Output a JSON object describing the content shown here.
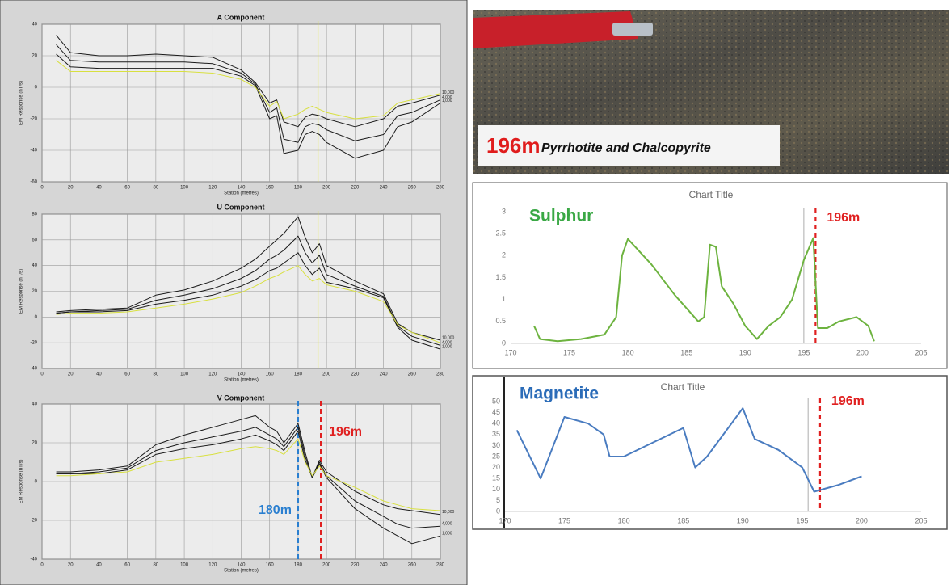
{
  "photo": {
    "depth": "196m",
    "caption": "Pyrrhotite and Chalcopyrite"
  },
  "chart_data": [
    {
      "type": "line",
      "title": "A Component",
      "xlabel": "Station (metres)",
      "ylabel": "EM Response (nT/s)",
      "grid": true,
      "x": [
        10,
        20,
        40,
        60,
        80,
        100,
        120,
        140,
        150,
        160,
        165,
        170,
        180,
        185,
        190,
        195,
        200,
        220,
        240,
        250,
        260,
        280
      ],
      "xlim": [
        0,
        280
      ],
      "xticks": [
        0,
        20,
        40,
        60,
        80,
        100,
        120,
        140,
        160,
        180,
        200,
        220,
        240,
        260,
        280
      ],
      "ylim": [
        -60,
        40
      ],
      "yticks": [
        -60,
        -40,
        -20,
        0,
        20,
        40
      ],
      "series": [
        {
          "name": "10,000",
          "color": "#1a1a1a",
          "values": [
            33,
            22,
            20,
            20,
            21,
            20,
            19,
            11,
            3,
            -10,
            -8,
            -22,
            -25,
            -19,
            -17,
            -18,
            -20,
            -25,
            -20,
            -12,
            -10,
            -5
          ]
        },
        {
          "name": "4,000",
          "color": "#1a1a1a",
          "values": [
            27,
            17,
            16,
            16,
            16,
            16,
            15,
            9,
            2,
            -16,
            -13,
            -33,
            -35,
            -25,
            -23,
            -24,
            -27,
            -34,
            -30,
            -18,
            -16,
            -8
          ]
        },
        {
          "name": "1,000",
          "color": "#1a1a1a",
          "values": [
            21,
            13,
            12,
            12,
            12,
            12,
            12,
            7,
            1,
            -20,
            -18,
            -42,
            -40,
            -30,
            -28,
            -30,
            -35,
            -45,
            -40,
            -25,
            -22,
            -10
          ]
        },
        {
          "color": "#d8e040",
          "values": [
            17,
            10,
            10,
            10,
            10,
            10,
            9,
            5,
            0,
            -12,
            -9,
            -20,
            -17,
            -14,
            -12,
            -14,
            -16,
            -20,
            -18,
            -10,
            -8,
            -4
          ]
        }
      ],
      "markers": [
        {
          "x": 194,
          "color": "#e6e83c",
          "dashed": false
        }
      ]
    },
    {
      "type": "line",
      "title": "U Component",
      "xlabel": "Station (metres)",
      "ylabel": "EM Response (nT/s)",
      "grid": true,
      "x": [
        10,
        20,
        40,
        60,
        80,
        100,
        120,
        140,
        150,
        160,
        165,
        170,
        180,
        185,
        190,
        195,
        200,
        220,
        240,
        250,
        260,
        280
      ],
      "xlim": [
        0,
        280
      ],
      "xticks": [
        0,
        20,
        40,
        60,
        80,
        100,
        120,
        140,
        160,
        180,
        200,
        220,
        240,
        260,
        280
      ],
      "ylim": [
        -40,
        80
      ],
      "yticks": [
        -40,
        -20,
        0,
        20,
        40,
        60,
        80
      ],
      "series": [
        {
          "name": "10,000",
          "color": "#1a1a1a",
          "values": [
            4,
            5,
            6,
            7,
            17,
            21,
            28,
            38,
            45,
            55,
            60,
            65,
            78,
            62,
            50,
            57,
            40,
            28,
            18,
            -5,
            -12,
            -18
          ]
        },
        {
          "name": "4,000",
          "color": "#1a1a1a",
          "values": [
            3,
            4,
            5,
            6,
            13,
            17,
            22,
            30,
            36,
            45,
            48,
            52,
            63,
            50,
            42,
            48,
            33,
            24,
            16,
            -7,
            -15,
            -22
          ]
        },
        {
          "name": "1,000",
          "color": "#1a1a1a",
          "values": [
            3,
            4,
            4,
            5,
            10,
            13,
            17,
            24,
            29,
            36,
            38,
            42,
            50,
            40,
            33,
            38,
            27,
            22,
            15,
            -8,
            -18,
            -25
          ]
        },
        {
          "color": "#d8e040",
          "values": [
            2,
            3,
            3,
            4,
            7,
            10,
            14,
            19,
            24,
            30,
            32,
            35,
            40,
            33,
            28,
            30,
            25,
            20,
            12,
            -6,
            -12,
            -20
          ]
        }
      ],
      "markers": [
        {
          "x": 194,
          "color": "#e6e83c",
          "dashed": false
        }
      ]
    },
    {
      "type": "line",
      "title": "V Component",
      "xlabel": "Station (metres)",
      "ylabel": "EM Response (nT/s)",
      "grid": true,
      "x": [
        10,
        20,
        40,
        60,
        80,
        100,
        120,
        140,
        150,
        160,
        165,
        170,
        180,
        185,
        190,
        195,
        200,
        220,
        240,
        250,
        260,
        280
      ],
      "xlim": [
        0,
        280
      ],
      "xticks": [
        0,
        20,
        40,
        60,
        80,
        100,
        120,
        140,
        160,
        180,
        200,
        220,
        240,
        260,
        280
      ],
      "ylim": [
        -40,
        40
      ],
      "yticks": [
        -40,
        -20,
        0,
        20,
        40
      ],
      "series": [
        {
          "name": "10,000",
          "color": "#1a1a1a",
          "values": [
            5,
            5,
            6,
            8,
            19,
            24,
            28,
            32,
            34,
            28,
            26,
            20,
            30,
            15,
            2,
            11,
            5,
            -5,
            -12,
            -14,
            -15,
            -17
          ]
        },
        {
          "name": "4,000",
          "color": "#1a1a1a",
          "values": [
            4,
            4,
            5,
            7,
            16,
            20,
            23,
            26,
            28,
            24,
            22,
            18,
            28,
            13,
            2,
            10,
            3,
            -10,
            -18,
            -22,
            -24,
            -23
          ]
        },
        {
          "name": "1,000",
          "color": "#1a1a1a",
          "values": [
            4,
            4,
            4,
            6,
            14,
            17,
            19,
            22,
            24,
            21,
            19,
            16,
            26,
            11,
            2,
            9,
            2,
            -14,
            -24,
            -28,
            -32,
            -28
          ]
        },
        {
          "color": "#d8e040",
          "values": [
            3,
            3,
            4,
            5,
            10,
            12,
            14,
            17,
            18,
            17,
            16,
            14,
            22,
            10,
            3,
            8,
            3,
            -3,
            -10,
            -12,
            -14,
            -15
          ]
        }
      ],
      "markers": [
        {
          "x": 180,
          "color": "#2a7fd0",
          "dashed": true,
          "label": "180m"
        },
        {
          "x": 196,
          "color": "#e02020",
          "dashed": true,
          "label": "196m"
        }
      ]
    },
    {
      "type": "line",
      "title": "Chart Title",
      "annotation": "Sulphur",
      "annotation_color": "#3aa845",
      "grid": false,
      "x": [
        172,
        172.5,
        174,
        176,
        178,
        179,
        179.5,
        180,
        182,
        184,
        186,
        186.5,
        187,
        187.5,
        188,
        189,
        190,
        191,
        192,
        193,
        194,
        195,
        195.8,
        196.2,
        197,
        198,
        199.5,
        200.5,
        201
      ],
      "xlim": [
        170,
        205
      ],
      "xticks": [
        170,
        175,
        180,
        185,
        190,
        195,
        200,
        205
      ],
      "ylim": [
        0,
        3
      ],
      "yticks": [
        0,
        0.5,
        1,
        1.5,
        2,
        2.5,
        3
      ],
      "series": [
        {
          "color": "#6db33f",
          "values": [
            0.4,
            0.1,
            0.05,
            0.1,
            0.2,
            0.6,
            2.0,
            2.38,
            1.8,
            1.1,
            0.5,
            0.6,
            2.25,
            2.2,
            1.3,
            0.9,
            0.4,
            0.1,
            0.4,
            0.6,
            1.0,
            1.9,
            2.4,
            0.35,
            0.35,
            0.5,
            0.6,
            0.4,
            0.05
          ]
        }
      ],
      "markers": [
        {
          "x": 195,
          "color": "#bbbbbb",
          "dashed": false
        },
        {
          "x": 196,
          "color": "#e02020",
          "dashed": true,
          "label": "196m"
        }
      ]
    },
    {
      "type": "line",
      "title": "Chart Title",
      "annotation": "Magnetite",
      "annotation_color": "#2b6cb8",
      "grid": false,
      "x": [
        171,
        173,
        175,
        177,
        178.3,
        178.8,
        180,
        185,
        186,
        187,
        190,
        191,
        193,
        195,
        196,
        198,
        200
      ],
      "xlim": [
        170,
        205
      ],
      "xticks": [
        170,
        175,
        180,
        185,
        190,
        195,
        200,
        205
      ],
      "ylim": [
        0,
        50
      ],
      "yticks": [
        0,
        5,
        10,
        15,
        20,
        25,
        30,
        35,
        40,
        45,
        50
      ],
      "series": [
        {
          "color": "#4a7cc0",
          "values": [
            37,
            15,
            43,
            40,
            35,
            25,
            25,
            38,
            20,
            25,
            47,
            33,
            28,
            20,
            9,
            12,
            16
          ]
        }
      ],
      "markers": [
        {
          "x": 195.5,
          "color": "#bbbbbb",
          "dashed": false
        },
        {
          "x": 196.5,
          "color": "#e02020",
          "dashed": true,
          "label": "196m"
        }
      ]
    }
  ]
}
